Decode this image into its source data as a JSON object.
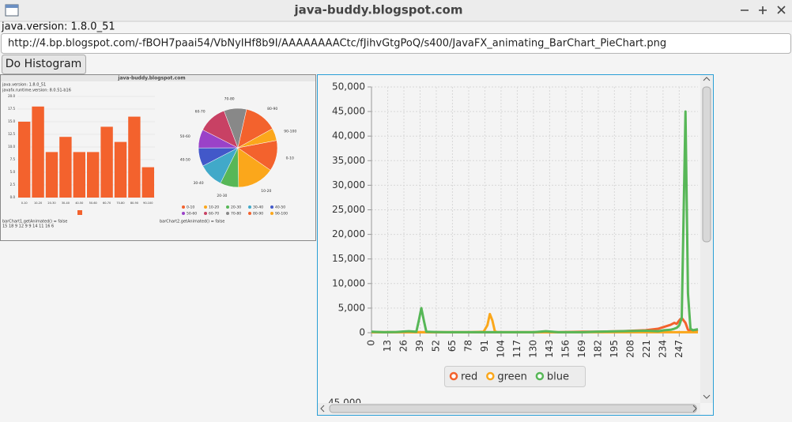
{
  "window_title": "java-buddy.blogspot.com",
  "version_label": "java.version: 1.8.0_51",
  "url": "http://4.bp.blogspot.com/-fBOH7paai54/VbNyIHf8b9I/AAAAAAAACtc/fJihvGtgPoQ/s400/JavaFX_animating_BarChart_PieChart.png",
  "button": "Do Histogram",
  "lower_chart_partial_tick": "45,000",
  "thumbnail": {
    "title": "java-buddy.blogspot.com",
    "lines": [
      "java.version: 1.8.0_51",
      "javafx.runtime.version: 8.0.51-b16"
    ],
    "bar_chart": {
      "categories": [
        "0-10",
        "10-20",
        "20-30",
        "30-40",
        "40-50",
        "50-60",
        "60-70",
        "70-80",
        "80-90",
        "90-100"
      ],
      "values": [
        15,
        18,
        9,
        12,
        9,
        9,
        14,
        11,
        16,
        6
      ],
      "color": "#f3622d",
      "ylim": [
        0,
        20
      ],
      "yticks": [
        {
          "value": 0,
          "label": "0.0"
        },
        {
          "value": 2.5,
          "label": "2.5"
        },
        {
          "value": 5,
          "label": "5.0"
        },
        {
          "value": 7.5,
          "label": "7.5"
        },
        {
          "value": 10,
          "label": "10.0"
        },
        {
          "value": 12.5,
          "label": "12.5"
        },
        {
          "value": 15,
          "label": "15.0"
        },
        {
          "value": 17.5,
          "label": "17.5"
        },
        {
          "value": 20,
          "label": "20.0"
        }
      ]
    },
    "pie_chart": {
      "categories": [
        "0-10",
        "10-20",
        "20-30",
        "30-40",
        "40-50",
        "50-60",
        "60-70",
        "70-80",
        "80-90",
        "90-100"
      ],
      "values": [
        15,
        18,
        9,
        12,
        9,
        9,
        14,
        11,
        16,
        6
      ],
      "colors": [
        "#f3622d",
        "#fba71b",
        "#57b757",
        "#41a9c9",
        "#4258c9",
        "#9a42c8",
        "#c84164",
        "#888888",
        "#f3622d",
        "#fba71b"
      ]
    },
    "bar_note": "barChart1.getAnimated() = false",
    "values_note": "15 18 9 12 9 9 14 11 16 6",
    "pie_note": "barChart2.getAnimated() = false"
  },
  "chart_data": {
    "type": "line",
    "x": [
      0,
      10,
      20,
      30,
      36,
      38,
      40,
      42,
      44,
      50,
      60,
      80,
      90,
      93,
      95,
      97,
      99,
      101,
      110,
      130,
      140,
      150,
      170,
      180,
      200,
      220,
      230,
      235,
      240,
      243,
      245,
      247,
      249,
      252,
      254,
      256,
      258,
      262
    ],
    "series": [
      {
        "name": "red",
        "color": "#f3622d",
        "values": [
          100,
          100,
          100,
          100,
          100,
          100,
          100,
          100,
          100,
          100,
          100,
          100,
          100,
          100,
          100,
          100,
          100,
          100,
          100,
          100,
          100,
          100,
          200,
          200,
          300,
          500,
          800,
          1200,
          1600,
          2000,
          1800,
          2500,
          3000,
          2000,
          600,
          400,
          300,
          200
        ]
      },
      {
        "name": "green",
        "color": "#fba71b",
        "values": [
          100,
          100,
          100,
          100,
          100,
          100,
          100,
          100,
          100,
          100,
          100,
          100,
          200,
          1500,
          3800,
          2500,
          300,
          100,
          100,
          100,
          100,
          100,
          100,
          100,
          100,
          100,
          100,
          100,
          100,
          100,
          100,
          100,
          100,
          100,
          100,
          100,
          100,
          100
        ]
      },
      {
        "name": "blue",
        "color": "#57b757",
        "values": [
          200,
          100,
          150,
          300,
          200,
          2500,
          5000,
          2500,
          200,
          150,
          100,
          100,
          100,
          100,
          100,
          100,
          100,
          100,
          100,
          100,
          300,
          100,
          100,
          200,
          300,
          400,
          300,
          500,
          600,
          800,
          1000,
          1500,
          3000,
          45000,
          8000,
          800,
          500,
          700
        ]
      }
    ],
    "xlim": [
      0,
      262
    ],
    "xticks": [
      0,
      13,
      26,
      39,
      52,
      65,
      78,
      91,
      104,
      117,
      130,
      143,
      156,
      169,
      182,
      195,
      208,
      221,
      234,
      247
    ],
    "ylim": [
      0,
      50000
    ],
    "yticks": [
      {
        "value": 0,
        "label": "0"
      },
      {
        "value": 5000,
        "label": "5,000"
      },
      {
        "value": 10000,
        "label": "10,000"
      },
      {
        "value": 15000,
        "label": "15,000"
      },
      {
        "value": 20000,
        "label": "20,000"
      },
      {
        "value": 25000,
        "label": "25,000"
      },
      {
        "value": 30000,
        "label": "30,000"
      },
      {
        "value": 35000,
        "label": "35,000"
      },
      {
        "value": 40000,
        "label": "40,000"
      },
      {
        "value": 45000,
        "label": "45,000"
      },
      {
        "value": 50000,
        "label": "50,000"
      }
    ],
    "grid": true,
    "legend": "bottom"
  }
}
